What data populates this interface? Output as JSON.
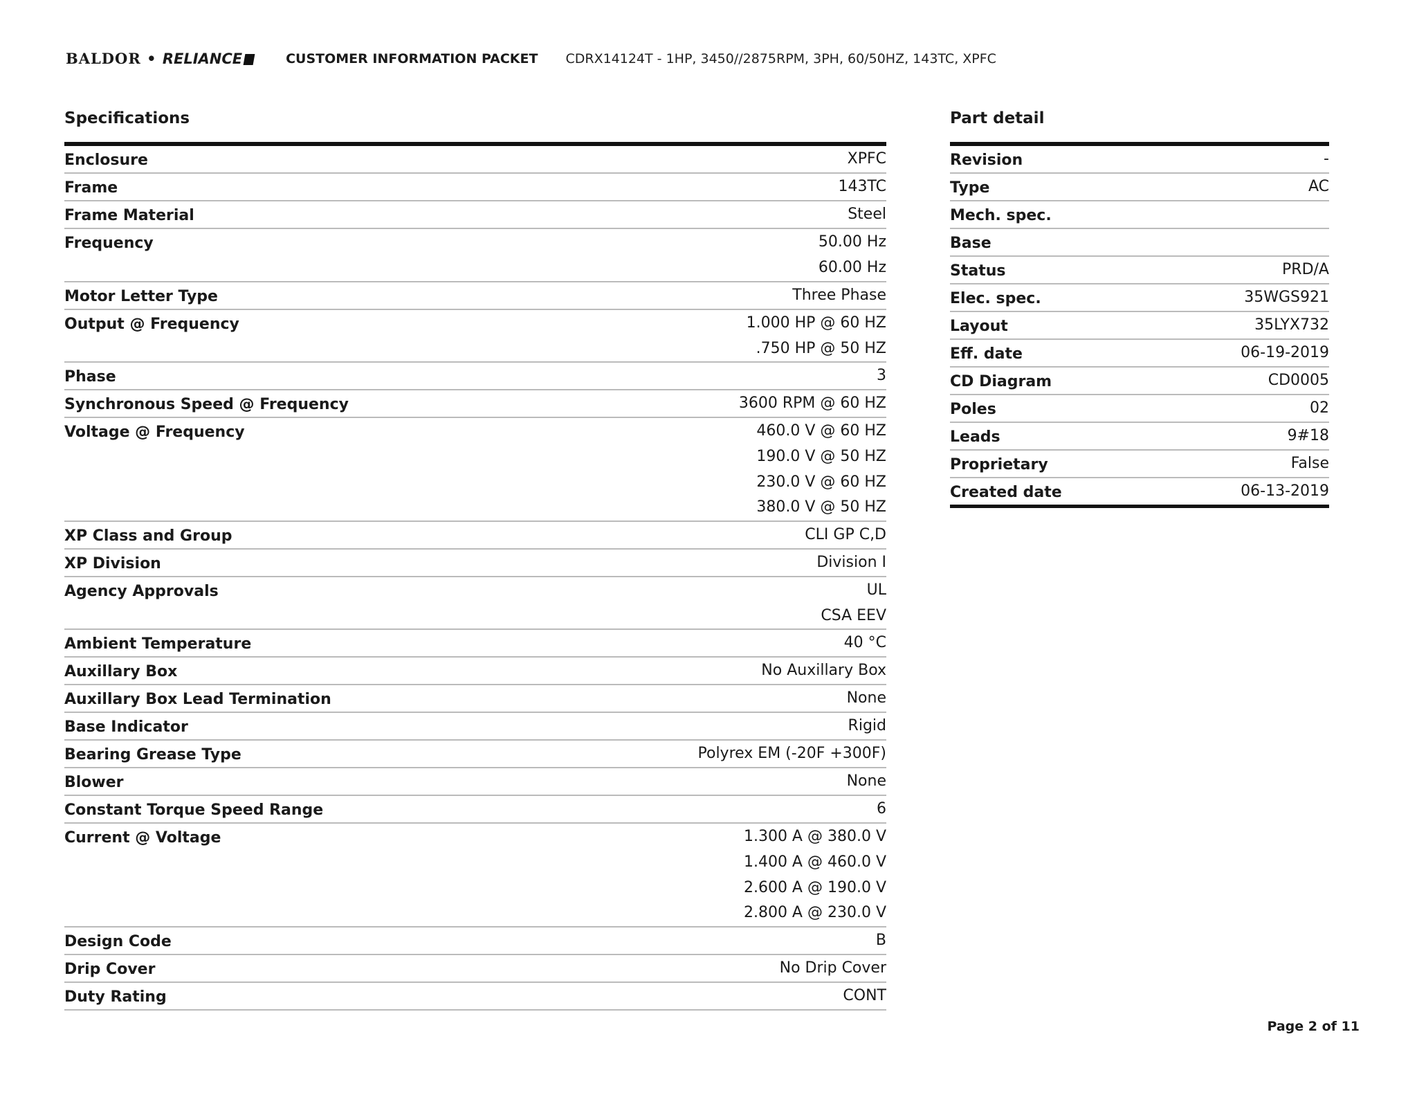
{
  "header": {
    "brand": "BALDOR • RELIANCE",
    "title": "CUSTOMER INFORMATION PACKET",
    "model": "CDRX14124T - 1HP, 3450//2875RPM, 3PH, 60/50HZ, 143TC, XPFC"
  },
  "specifications": {
    "title": "Specifications",
    "rows": [
      {
        "label": "Enclosure",
        "values": [
          "XPFC"
        ]
      },
      {
        "label": "Frame",
        "values": [
          "143TC"
        ]
      },
      {
        "label": "Frame Material",
        "values": [
          "Steel"
        ]
      },
      {
        "label": "Frequency",
        "values": [
          "50.00 Hz",
          "60.00 Hz"
        ]
      },
      {
        "label": "Motor Letter Type",
        "values": [
          "Three Phase"
        ]
      },
      {
        "label": "Output @ Frequency",
        "values": [
          "1.000 HP @ 60 HZ",
          ".750 HP @ 50 HZ"
        ]
      },
      {
        "label": "Phase",
        "values": [
          "3"
        ]
      },
      {
        "label": "Synchronous Speed @ Frequency",
        "values": [
          "3600 RPM @ 60 HZ"
        ]
      },
      {
        "label": "Voltage @ Frequency",
        "values": [
          "460.0 V @ 60 HZ",
          "190.0 V @ 50 HZ",
          "230.0 V @ 60 HZ",
          "380.0 V @ 50 HZ"
        ]
      },
      {
        "label": "XP Class and Group",
        "values": [
          "CLI GP C,D"
        ]
      },
      {
        "label": "XP Division",
        "values": [
          "Division I"
        ]
      },
      {
        "label": "Agency Approvals",
        "values": [
          "UL",
          "CSA EEV"
        ]
      },
      {
        "label": "Ambient Temperature",
        "values": [
          "40 °C"
        ]
      },
      {
        "label": "Auxillary Box",
        "values": [
          "No Auxillary Box"
        ]
      },
      {
        "label": "Auxillary Box Lead Termination",
        "values": [
          "None"
        ]
      },
      {
        "label": "Base Indicator",
        "values": [
          "Rigid"
        ]
      },
      {
        "label": "Bearing Grease Type",
        "values": [
          "Polyrex EM (-20F +300F)"
        ]
      },
      {
        "label": "Blower",
        "values": [
          "None"
        ]
      },
      {
        "label": "Constant Torque Speed Range",
        "values": [
          "6"
        ]
      },
      {
        "label": "Current @ Voltage",
        "values": [
          "1.300 A @ 380.0 V",
          "1.400 A @ 460.0 V",
          "2.600 A @ 190.0 V",
          "2.800 A @ 230.0 V"
        ]
      },
      {
        "label": "Design Code",
        "values": [
          "B"
        ]
      },
      {
        "label": "Drip Cover",
        "values": [
          "No Drip Cover"
        ]
      },
      {
        "label": "Duty Rating",
        "values": [
          "CONT"
        ]
      }
    ]
  },
  "part_detail": {
    "title": "Part detail",
    "rows": [
      {
        "label": "Revision",
        "values": [
          "-"
        ]
      },
      {
        "label": "Type",
        "values": [
          "AC"
        ]
      },
      {
        "label": "Mech. spec.",
        "values": [
          ""
        ]
      },
      {
        "label": "Base",
        "values": [
          ""
        ]
      },
      {
        "label": "Status",
        "values": [
          "PRD/A"
        ]
      },
      {
        "label": "Elec. spec.",
        "values": [
          "35WGS921"
        ]
      },
      {
        "label": "Layout",
        "values": [
          "35LYX732"
        ]
      },
      {
        "label": "Eff. date",
        "values": [
          "06-19-2019"
        ]
      },
      {
        "label": "CD Diagram",
        "values": [
          "CD0005"
        ]
      },
      {
        "label": "Poles",
        "values": [
          "02"
        ]
      },
      {
        "label": "Leads",
        "values": [
          "9#18"
        ]
      },
      {
        "label": "Proprietary",
        "values": [
          "False"
        ]
      },
      {
        "label": "Created date",
        "values": [
          "06-13-2019"
        ]
      }
    ]
  },
  "footer": {
    "page": "Page 2 of 11"
  }
}
